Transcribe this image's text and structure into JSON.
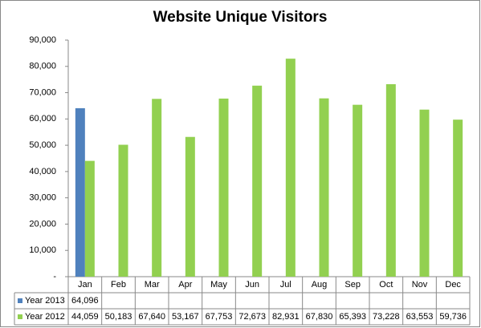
{
  "chart_data": {
    "type": "bar",
    "title": "Website Unique Visitors",
    "categories": [
      "Jan",
      "Feb",
      "Mar",
      "Apr",
      "May",
      "Jun",
      "Jul",
      "Aug",
      "Sep",
      "Oct",
      "Nov",
      "Dec"
    ],
    "series": [
      {
        "name": "Year 2013",
        "color": "#4f81bd",
        "values": [
          64096,
          null,
          null,
          null,
          null,
          null,
          null,
          null,
          null,
          null,
          null,
          null
        ],
        "value_labels": [
          "64,096",
          null,
          null,
          null,
          null,
          null,
          null,
          null,
          null,
          null,
          null,
          null
        ]
      },
      {
        "name": "Year 2012",
        "color": "#92d050",
        "values": [
          44059,
          50183,
          67640,
          53167,
          67753,
          72673,
          82931,
          67830,
          65393,
          73228,
          63553,
          59736
        ],
        "value_labels": [
          "44,059",
          "50,183",
          "67,640",
          "53,167",
          "67,753",
          "72,673",
          "82,931",
          "67,830",
          "65,393",
          "73,228",
          "63,553",
          "59,736"
        ]
      }
    ],
    "ylim": [
      0,
      90000
    ],
    "yticks": [
      {
        "value": 0,
        "label": "-"
      },
      {
        "value": 10000,
        "label": "10,000"
      },
      {
        "value": 20000,
        "label": "20,000"
      },
      {
        "value": 30000,
        "label": "30,000"
      },
      {
        "value": 40000,
        "label": "40,000"
      },
      {
        "value": 50000,
        "label": "50,000"
      },
      {
        "value": 60000,
        "label": "60,000"
      },
      {
        "value": 70000,
        "label": "70,000"
      },
      {
        "value": 80000,
        "label": "80,000"
      },
      {
        "value": 90000,
        "label": "90,000"
      }
    ],
    "grid": false
  }
}
